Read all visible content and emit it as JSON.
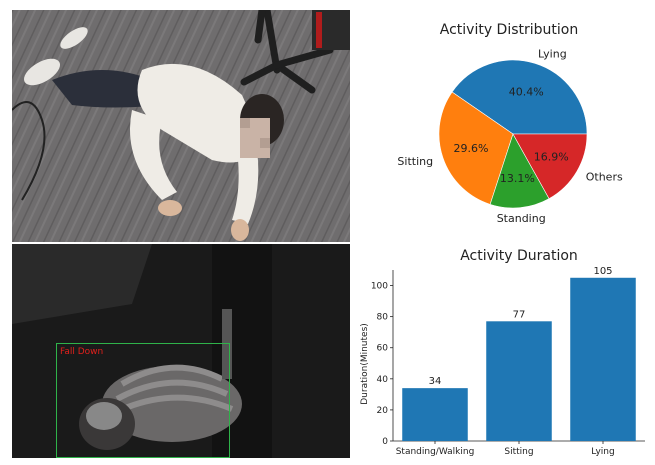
{
  "detection": {
    "label": "Fall Down",
    "box_color": "#2fb34a",
    "label_color": "#e0201c"
  },
  "scene_top": {
    "carpet_color": "#6f6d6e",
    "shirt_color": "#efece6"
  },
  "scene_bottom": {
    "background_color": "#1a1a1a"
  },
  "chart_data": [
    {
      "type": "pie",
      "title": "Activity Distribution",
      "labels": [
        "Lying",
        "Sitting",
        "Standing",
        "Others"
      ],
      "values": [
        40.4,
        29.6,
        13.1,
        16.9
      ],
      "value_labels": [
        "40.4%",
        "29.6%",
        "13.1%",
        "16.9%"
      ],
      "colors": [
        "#1f77b4",
        "#ff7f0e",
        "#2ca02c",
        "#d62728"
      ]
    },
    {
      "type": "bar",
      "title": "Activity Duration",
      "categories": [
        "Standing/Walking",
        "Sitting",
        "Lying"
      ],
      "values": [
        34,
        77,
        105
      ],
      "value_labels": [
        "34",
        "77",
        "105"
      ],
      "ylabel": "Duration(Minutes)",
      "xlabel": "",
      "ylim": [
        0,
        110
      ],
      "yticks": [
        "0",
        "20",
        "40",
        "60",
        "80",
        "100"
      ],
      "color": "#1f77b4",
      "grid": false
    }
  ]
}
